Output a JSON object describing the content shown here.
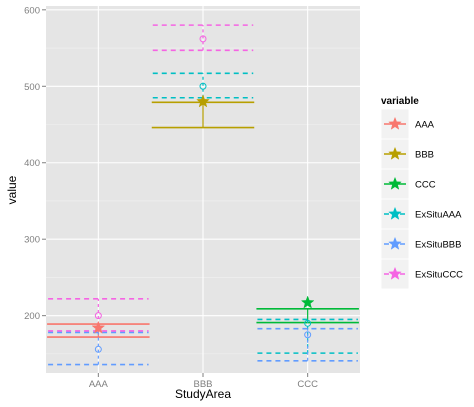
{
  "chart_data": {
    "type": "errorbar",
    "xlabel": "StudyArea",
    "ylabel": "value",
    "categories": [
      "AAA",
      "BBB",
      "CCC"
    ],
    "ylim": [
      125,
      605
    ],
    "yticks": [
      200,
      300,
      400,
      500,
      600
    ],
    "grid": true,
    "legend": {
      "title": "variable",
      "position": "right"
    },
    "series": [
      {
        "name": "AAA",
        "color": "#F8766D",
        "dashed": false,
        "errorbars": [
          {
            "category": "AAA",
            "low": 172,
            "high": 189
          }
        ],
        "points": [
          {
            "category": "AAA",
            "mean": 184
          }
        ]
      },
      {
        "name": "BBB",
        "color": "#B79F00",
        "dashed": false,
        "errorbars": [
          {
            "category": "BBB",
            "low": 446,
            "high": 479
          }
        ],
        "points": [
          {
            "category": "BBB",
            "mean": 480
          }
        ]
      },
      {
        "name": "CCC",
        "color": "#00BA38",
        "dashed": false,
        "errorbars": [
          {
            "category": "CCC",
            "low": 191,
            "high": 209
          }
        ],
        "points": [
          {
            "category": "CCC",
            "mean": 217
          }
        ]
      },
      {
        "name": "ExSituAAA",
        "color": "#00BFC4",
        "dashed": true,
        "errorbars": [
          {
            "category": "BBB",
            "low": 485,
            "high": 517
          },
          {
            "category": "CCC",
            "low": 151,
            "high": 195
          }
        ],
        "points": [
          {
            "category": "BBB",
            "mean": 500
          },
          {
            "category": "CCC",
            "mean": 190
          }
        ]
      },
      {
        "name": "ExSituBBB",
        "color": "#619CFF",
        "dashed": true,
        "errorbars": [
          {
            "category": "AAA",
            "low": 136,
            "high": 178
          },
          {
            "category": "CCC",
            "low": 141,
            "high": 183
          }
        ],
        "points": [
          {
            "category": "AAA",
            "mean": 156
          },
          {
            "category": "CCC",
            "mean": 175
          }
        ]
      },
      {
        "name": "ExSituCCC",
        "color": "#F564E3",
        "dashed": true,
        "errorbars": [
          {
            "category": "AAA",
            "low": 180,
            "high": 222
          },
          {
            "category": "BBB",
            "low": 547,
            "high": 580
          }
        ],
        "points": [
          {
            "category": "AAA",
            "mean": 200
          },
          {
            "category": "BBB",
            "mean": 562
          }
        ]
      }
    ]
  }
}
